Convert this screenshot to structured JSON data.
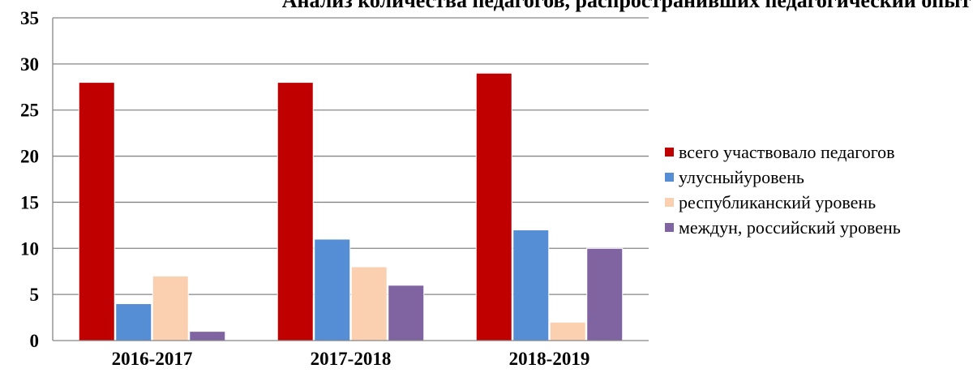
{
  "chart_data": {
    "type": "bar",
    "title": "Анализ количества педагогов, распространивших педагогический опыт",
    "categories": [
      "2016-2017",
      "2017-2018",
      "2018-2019"
    ],
    "series": [
      {
        "name": "всего участвовало педагогов",
        "color": "#C00000",
        "values": [
          28,
          28,
          29
        ]
      },
      {
        "name": "улусныйуровень",
        "color": "#558ED5",
        "values": [
          4,
          11,
          12
        ]
      },
      {
        "name": "республиканский уровень",
        "color": "#FAD0B0",
        "values": [
          7,
          8,
          2
        ]
      },
      {
        "name": "междун, российский уровень",
        "color": "#8064A2",
        "values": [
          1,
          6,
          10
        ]
      }
    ],
    "ylim": [
      0,
      35
    ],
    "yticks": [
      0,
      5,
      10,
      15,
      20,
      25,
      30,
      35
    ],
    "grid": true,
    "legend": "right"
  }
}
